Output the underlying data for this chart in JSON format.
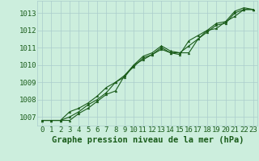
{
  "background_color": "#cceedd",
  "grid_color": "#aacccc",
  "line_color": "#1a5c1a",
  "marker_color": "#1a5c1a",
  "xlabel": "Graphe pression niveau de la mer (hPa)",
  "xlim": [
    -0.5,
    23.5
  ],
  "ylim": [
    1006.5,
    1013.7
  ],
  "yticks": [
    1007,
    1008,
    1009,
    1010,
    1011,
    1012,
    1013
  ],
  "xticks": [
    0,
    1,
    2,
    3,
    4,
    5,
    6,
    7,
    8,
    9,
    10,
    11,
    12,
    13,
    14,
    15,
    16,
    17,
    18,
    19,
    20,
    21,
    22,
    23
  ],
  "series1": [
    1006.8,
    1006.8,
    1006.8,
    1006.8,
    1007.2,
    1007.5,
    1007.9,
    1008.3,
    1008.5,
    1009.4,
    1010.0,
    1010.5,
    1010.7,
    1011.1,
    1010.8,
    1010.7,
    1010.7,
    1011.5,
    1012.0,
    1012.4,
    1012.5,
    1013.1,
    1013.3,
    1013.2
  ],
  "series2": [
    1006.8,
    1006.8,
    1006.8,
    1007.0,
    1007.3,
    1007.7,
    1008.0,
    1008.4,
    1009.0,
    1009.3,
    1010.0,
    1010.3,
    1010.6,
    1010.9,
    1010.7,
    1010.6,
    1011.4,
    1011.7,
    1012.0,
    1012.1,
    1012.5,
    1012.8,
    1013.2,
    1013.2
  ],
  "series3": [
    1006.8,
    1006.8,
    1006.8,
    1007.3,
    1007.5,
    1007.8,
    1008.2,
    1008.7,
    1009.0,
    1009.4,
    1009.9,
    1010.4,
    1010.6,
    1011.0,
    1010.7,
    1010.7,
    1011.1,
    1011.5,
    1011.9,
    1012.3,
    1012.4,
    1013.0,
    1013.2,
    1013.2
  ],
  "title_color": "#1a5c1a",
  "title_fontsize": 7.5,
  "tick_fontsize": 6.5,
  "tick_color": "#1a5c1a"
}
